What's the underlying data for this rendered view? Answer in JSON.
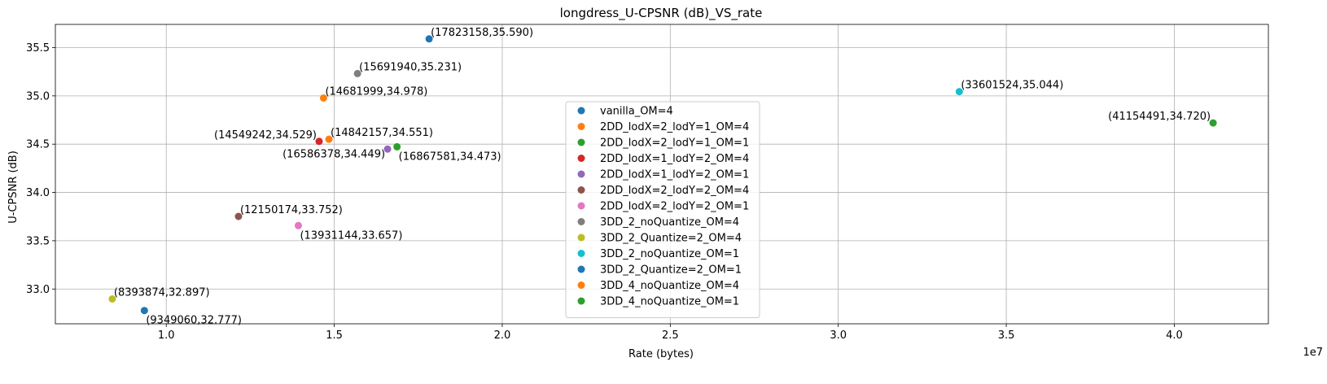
{
  "chart_data": {
    "type": "scatter",
    "title": "longdress_U-CPSNR (dB)_VS_rate",
    "xlabel": "Rate (bytes)",
    "ylabel": "U-CPSNR (dB)",
    "x_offset_text": "1e7",
    "xlim": [
      6700000,
      42800000
    ],
    "ylim": [
      32.64,
      35.74
    ],
    "xticks": [
      10000000,
      15000000,
      20000000,
      25000000,
      30000000,
      35000000,
      40000000
    ],
    "xtick_labels": [
      "1.0",
      "1.5",
      "2.0",
      "2.5",
      "3.0",
      "3.5",
      "4.0"
    ],
    "yticks": [
      33.0,
      33.5,
      34.0,
      34.5,
      35.0,
      35.5
    ],
    "ytick_labels": [
      "33.0",
      "33.5",
      "34.0",
      "34.5",
      "35.0",
      "35.5"
    ],
    "grid": true,
    "legend_position": "center",
    "series": [
      {
        "name": "vanilla_OM=4",
        "color": "#1f77b4",
        "x": 17823158,
        "y": 35.59,
        "label": "(17823158,35.590)",
        "label_anchor": "right-above"
      },
      {
        "name": "2DD_lodX=2_lodY=1_OM=4",
        "color": "#ff7f0e",
        "x": 14842157,
        "y": 34.551,
        "label": "(14842157,34.551)",
        "label_anchor": "right-above"
      },
      {
        "name": "2DD_lodX=2_lodY=1_OM=1",
        "color": "#2ca02c",
        "x": 16867581,
        "y": 34.473,
        "label": "(16867581,34.473)",
        "label_anchor": "right-below"
      },
      {
        "name": "2DD_lodX=1_lodY=2_OM=4",
        "color": "#d62728",
        "x": 14549242,
        "y": 34.529,
        "label": "(14549242,34.529)",
        "label_anchor": "left-above"
      },
      {
        "name": "2DD_lodX=1_lodY=2_OM=1",
        "color": "#9467bd",
        "x": 16586378,
        "y": 34.449,
        "label": "(16586378,34.449)",
        "label_anchor": "left-below"
      },
      {
        "name": "2DD_lodX=2_lodY=2_OM=4",
        "color": "#8c564b",
        "x": 12150174,
        "y": 33.752,
        "label": "(12150174,33.752)",
        "label_anchor": "right-above"
      },
      {
        "name": "2DD_lodX=2_lodY=2_OM=1",
        "color": "#e377c2",
        "x": 13931144,
        "y": 33.657,
        "label": "(13931144,33.657)",
        "label_anchor": "right-below"
      },
      {
        "name": "3DD_2_noQuantize_OM=4",
        "color": "#7f7f7f",
        "x": 15691940,
        "y": 35.231,
        "label": "(15691940,35.231)",
        "label_anchor": "right-above"
      },
      {
        "name": "3DD_2_Quantize=2_OM=4",
        "color": "#bcbd22",
        "x": 8393874,
        "y": 32.897,
        "label": "(8393874,32.897)",
        "label_anchor": "right-above"
      },
      {
        "name": "3DD_2_noQuantize_OM=1",
        "color": "#17becf",
        "x": 33601524,
        "y": 35.044,
        "label": "(33601524,35.044)",
        "label_anchor": "right-above"
      },
      {
        "name": "3DD_2_Quantize=2_OM=1",
        "color": "#1f77b4",
        "x": 9349060,
        "y": 32.777,
        "label": "(9349060,32.777)",
        "label_anchor": "right-below"
      },
      {
        "name": "3DD_4_noQuantize_OM=4",
        "color": "#ff7f0e",
        "x": 14681999,
        "y": 34.978,
        "label": "(14681999,34.978)",
        "label_anchor": "right-above"
      },
      {
        "name": "3DD_4_noQuantize_OM=1",
        "color": "#2ca02c",
        "x": 41154491,
        "y": 34.72,
        "label": "(41154491,34.720)",
        "label_anchor": "left-above"
      }
    ]
  }
}
